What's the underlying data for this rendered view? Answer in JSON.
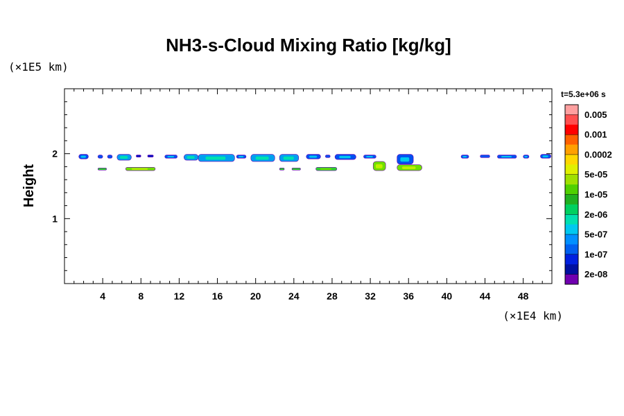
{
  "chart_data": {
    "type": "heatmap",
    "title": "NH3-s-Cloud Mixing Ratio [kg/kg]",
    "ylabel": "Height",
    "xlabel": "",
    "x_unit": "(×1E4 km)",
    "y_unit": "(×1E5 km)",
    "time_label": "t=5.3e+06 s",
    "xlim": [
      0,
      51
    ],
    "ylim": [
      0,
      3
    ],
    "x_ticks": [
      4,
      8,
      12,
      16,
      20,
      24,
      28,
      32,
      36,
      40,
      44,
      48
    ],
    "y_ticks": [
      1,
      2
    ],
    "colorbar": {
      "levels": [
        "0.005",
        "0.001",
        "0.0002",
        "5e-05",
        "1e-05",
        "2e-06",
        "5e-07",
        "1e-07",
        "2e-08"
      ],
      "colors_top_to_bottom": [
        "#ffa0a0",
        "#ff5050",
        "#ff0000",
        "#ff6000",
        "#ffa000",
        "#ffd700",
        "#e0f000",
        "#a0e000",
        "#50d000",
        "#20b020",
        "#00d060",
        "#00e0b0",
        "#00c8f0",
        "#0090ff",
        "#0060f0",
        "#0020e0",
        "#0010a0",
        "#7000b0"
      ]
    },
    "cloud_regions": [
      {
        "x": [
          1.5,
          2.5
        ],
        "y": [
          1.92,
          1.99
        ],
        "level": "1e-07"
      },
      {
        "x": [
          3.5,
          4.0
        ],
        "y": [
          1.93,
          1.98
        ],
        "level": "1e-07"
      },
      {
        "x": [
          4.5,
          5.0
        ],
        "y": [
          1.93,
          1.98
        ],
        "level": "1e-07"
      },
      {
        "x": [
          5.5,
          7.0
        ],
        "y": [
          1.9,
          1.99
        ],
        "level": "5e-07"
      },
      {
        "x": [
          7.5,
          8.0
        ],
        "y": [
          1.95,
          1.98
        ],
        "level": "2e-08"
      },
      {
        "x": [
          8.7,
          9.3
        ],
        "y": [
          1.95,
          1.98
        ],
        "level": "2e-08"
      },
      {
        "x": [
          10.5,
          11.8
        ],
        "y": [
          1.93,
          1.98
        ],
        "level": "1e-07"
      },
      {
        "x": [
          12.5,
          14.0
        ],
        "y": [
          1.9,
          1.99
        ],
        "level": "5e-07"
      },
      {
        "x": [
          14.0,
          17.8
        ],
        "y": [
          1.88,
          1.99
        ],
        "level": "5e-07"
      },
      {
        "x": [
          18.0,
          19.0
        ],
        "y": [
          1.93,
          1.98
        ],
        "level": "1e-07"
      },
      {
        "x": [
          19.5,
          22.0
        ],
        "y": [
          1.88,
          1.99
        ],
        "level": "5e-07"
      },
      {
        "x": [
          22.5,
          24.5
        ],
        "y": [
          1.88,
          1.99
        ],
        "level": "5e-07"
      },
      {
        "x": [
          25.3,
          26.8
        ],
        "y": [
          1.92,
          1.99
        ],
        "level": "1e-07"
      },
      {
        "x": [
          27.3,
          27.8
        ],
        "y": [
          1.94,
          1.98
        ],
        "level": "1e-07"
      },
      {
        "x": [
          28.3,
          30.5
        ],
        "y": [
          1.91,
          1.99
        ],
        "level": "1e-07"
      },
      {
        "x": [
          31.3,
          32.6
        ],
        "y": [
          1.93,
          1.98
        ],
        "level": "1e-07"
      },
      {
        "x": [
          32.3,
          33.6
        ],
        "y": [
          1.74,
          1.88
        ],
        "level": "5e-05"
      },
      {
        "x": [
          34.8,
          36.5
        ],
        "y": [
          1.84,
          1.99
        ],
        "level": "1e-07"
      },
      {
        "x": [
          34.8,
          37.4
        ],
        "y": [
          1.74,
          1.83
        ],
        "level": "5e-05"
      },
      {
        "x": [
          41.5,
          42.3
        ],
        "y": [
          1.93,
          1.98
        ],
        "level": "1e-07"
      },
      {
        "x": [
          43.5,
          44.5
        ],
        "y": [
          1.94,
          1.98
        ],
        "level": "1e-07"
      },
      {
        "x": [
          45.3,
          47.3
        ],
        "y": [
          1.93,
          1.98
        ],
        "level": "1e-07"
      },
      {
        "x": [
          48.0,
          48.6
        ],
        "y": [
          1.93,
          1.98
        ],
        "level": "1e-07"
      },
      {
        "x": [
          49.8,
          50.9
        ],
        "y": [
          1.93,
          1.99
        ],
        "level": "1e-07"
      },
      {
        "x": [
          3.5,
          4.4
        ],
        "y": [
          1.75,
          1.78
        ],
        "level": "1e-05"
      },
      {
        "x": [
          6.4,
          9.5
        ],
        "y": [
          1.74,
          1.79
        ],
        "level": "5e-05"
      },
      {
        "x": [
          22.5,
          23.0
        ],
        "y": [
          1.75,
          1.78
        ],
        "level": "1e-05"
      },
      {
        "x": [
          23.8,
          24.7
        ],
        "y": [
          1.75,
          1.78
        ],
        "level": "1e-05"
      },
      {
        "x": [
          26.3,
          28.5
        ],
        "y": [
          1.74,
          1.79
        ],
        "level": "1e-05"
      }
    ]
  }
}
